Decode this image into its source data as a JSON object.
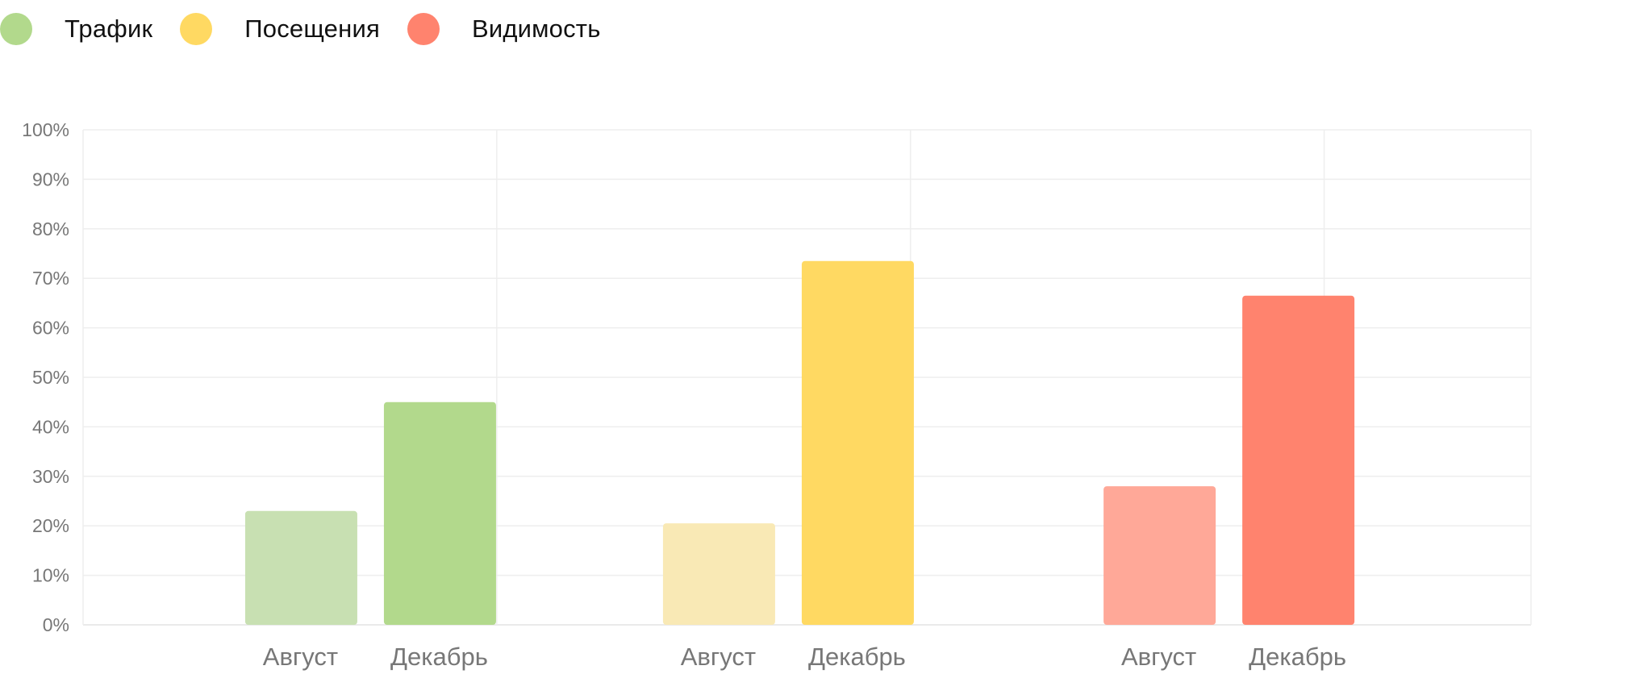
{
  "chart_data": {
    "type": "bar",
    "title": "",
    "xlabel": "",
    "ylabel": "",
    "ylim": [
      0,
      100
    ],
    "y_ticks": [
      "0%",
      "10%",
      "20%",
      "30%",
      "40%",
      "50%",
      "60%",
      "70%",
      "80%",
      "90%",
      "100%"
    ],
    "grid": true,
    "legend_position": "top-left",
    "series": [
      {
        "name": "Трафик",
        "color": "#b2d98c",
        "light_color": "#c8e0b2",
        "categories": [
          "Август",
          "Декабрь"
        ],
        "values": [
          23,
          45
        ]
      },
      {
        "name": "Посещения",
        "color": "#ffd962",
        "light_color": "#f9e9b5",
        "categories": [
          "Август",
          "Декабрь"
        ],
        "values": [
          20.5,
          73.5
        ]
      },
      {
        "name": "Видимость",
        "color": "#ff836e",
        "light_color": "#ffa898",
        "categories": [
          "Август",
          "Декабрь"
        ],
        "values": [
          28,
          66.5
        ]
      }
    ]
  }
}
